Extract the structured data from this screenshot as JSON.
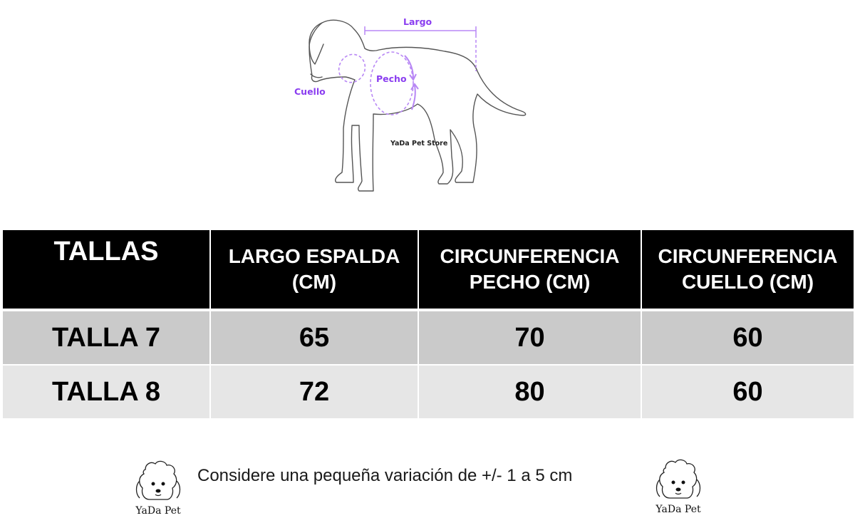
{
  "diagram": {
    "length_label": "Largo",
    "chest_label": "Pecho",
    "neck_label": "Cuello",
    "store_label": "YaDa Pet Store",
    "accent_color": "#8a3df0",
    "icon": "dog-outline-icon"
  },
  "table": {
    "headers": {
      "size": "TALLAS",
      "back_length_line1": "LARGO ESPALDA",
      "back_length_line2": "(CM)",
      "chest_line1": "CIRCUNFERENCIA",
      "chest_line2": "PECHO (CM)",
      "neck_line1": "CIRCUNFERENCIA",
      "neck_line2": "CUELLO (CM)"
    },
    "rows": [
      {
        "size": "TALLA 7",
        "back_length": "65",
        "chest": "70",
        "neck": "60"
      },
      {
        "size": "TALLA 8",
        "back_length": "72",
        "chest": "80",
        "neck": "60"
      }
    ],
    "header_bg": "#000000",
    "row_colors": [
      "#cacaca",
      "#e6e6e6"
    ]
  },
  "footer": {
    "note": "Considere una pequeña variación de +/- 1 a 5 cm",
    "logo_text": "YaDa Pet",
    "logo_icon": "poodle-logo-icon"
  }
}
